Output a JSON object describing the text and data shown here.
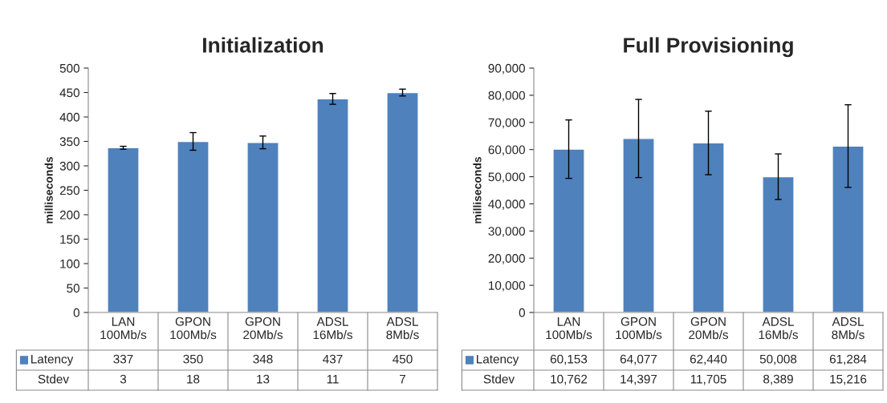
{
  "chart_data": [
    {
      "type": "bar",
      "title": "Initialization",
      "ylabel": "milliseconds",
      "categories": [
        "LAN\n100Mb/s",
        "GPON\n100Mb/s",
        "GPON\n20Mb/s",
        "ADSL\n16Mb/s",
        "ADSL\n8Mb/s"
      ],
      "series": [
        {
          "name": "Latency",
          "color": "#4f81bd",
          "values": [
            337,
            350,
            348,
            437,
            450
          ],
          "errors": [
            3,
            18,
            13,
            11,
            7
          ],
          "value_labels": [
            "337",
            "350",
            "348",
            "437",
            "450"
          ]
        }
      ],
      "legend": "bottom",
      "ylim": [
        0,
        500
      ],
      "yticks": [
        0,
        50,
        100,
        150,
        200,
        250,
        300,
        350,
        400,
        450,
        500
      ],
      "annotations": [
        "Stdev",
        "3",
        "18",
        "13",
        "11",
        "7"
      ]
    },
    {
      "type": "bar",
      "title": "Full Provisioning",
      "ylabel": "milliseconds",
      "categories": [
        "LAN\n100Mb/s",
        "GPON\n100Mb/s",
        "GPON\n20Mb/s",
        "ADSL\n16Mb/s",
        "ADSL\n8Mb/s"
      ],
      "series": [
        {
          "name": "Latency",
          "color": "#4f81bd",
          "values": [
            60153,
            64077,
            62440,
            50008,
            61284
          ],
          "errors": [
            10762,
            14397,
            11705,
            8389,
            15216
          ],
          "value_labels": [
            "60,153",
            "64,077",
            "62,440",
            "50,008",
            "61,284"
          ]
        }
      ],
      "legend": "bottom",
      "ylim": [
        0,
        90000
      ],
      "yticks": [
        {
          "value": 0,
          "label": "0"
        },
        {
          "value": 10000,
          "label": "10,000"
        },
        {
          "value": 20000,
          "label": "20,000"
        },
        {
          "value": 30000,
          "label": "30,000"
        },
        {
          "value": 40000,
          "label": "40,000"
        },
        {
          "value": 50000,
          "label": "50,000"
        },
        {
          "value": 60000,
          "label": "60,000"
        },
        {
          "value": 70000,
          "label": "70,000"
        },
        {
          "value": 80000,
          "label": "80,000"
        },
        {
          "value": 90000,
          "label": "90,000"
        }
      ],
      "annotations": [
        "Stdev",
        "10,762",
        "14,397",
        "11,705",
        "8,389",
        "15,216"
      ]
    }
  ]
}
